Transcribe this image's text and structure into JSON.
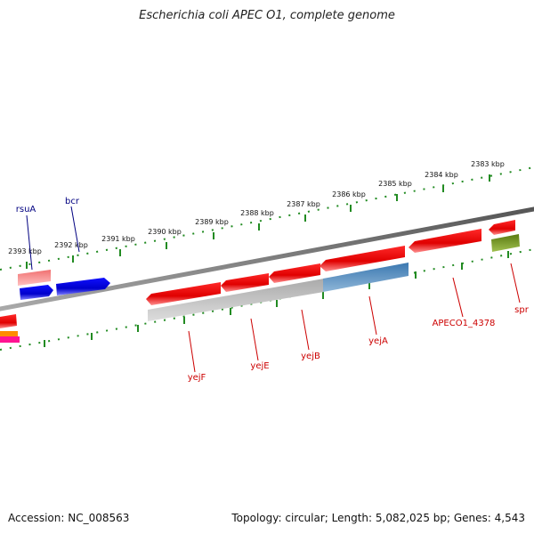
{
  "title": "Escherichia coli APEC O1, complete genome",
  "footer": {
    "accession": "Accession: NC_008563",
    "summary": "Topology: circular; Length: 5,082,025 bp; Genes: 4,543"
  },
  "scale": {
    "unit": "kbp",
    "ticks": [
      {
        "kbp": 2383,
        "label": "2383 kbp"
      },
      {
        "kbp": 2384,
        "label": "2384 kbp"
      },
      {
        "kbp": 2385,
        "label": "2385 kbp"
      },
      {
        "kbp": 2386,
        "label": "2386 kbp"
      },
      {
        "kbp": 2387,
        "label": "2387 kbp"
      },
      {
        "kbp": 2388,
        "label": "2388 kbp"
      },
      {
        "kbp": 2389,
        "label": "2389 kbp"
      },
      {
        "kbp": 2390,
        "label": "2390 kbp"
      },
      {
        "kbp": 2391,
        "label": "2391 kbp"
      },
      {
        "kbp": 2392,
        "label": "2392 kbp"
      },
      {
        "kbp": 2393,
        "label": "2393 kbp"
      }
    ]
  },
  "genes": [
    {
      "name": "rsuA",
      "color": "#000080"
    },
    {
      "name": "bcr",
      "color": "#000080"
    },
    {
      "name": "yejF",
      "color": "#cc0000"
    },
    {
      "name": "yejE",
      "color": "#cc0000"
    },
    {
      "name": "yejB",
      "color": "#cc0000"
    },
    {
      "name": "yejA",
      "color": "#cc0000"
    },
    {
      "name": "APECO1_4378",
      "color": "#cc0000"
    },
    {
      "name": "spr",
      "color": "#cc0000"
    }
  ],
  "colors": {
    "backbone": "#777777",
    "tick": "#228b22",
    "forward_gene": "#0000ee",
    "reverse_gene": "#ee0000",
    "rna_gene": "#f08080",
    "operon_gray": "#b0b0b0",
    "operon_blue": "#4682b4",
    "spr_gene": "#6b8e23"
  }
}
